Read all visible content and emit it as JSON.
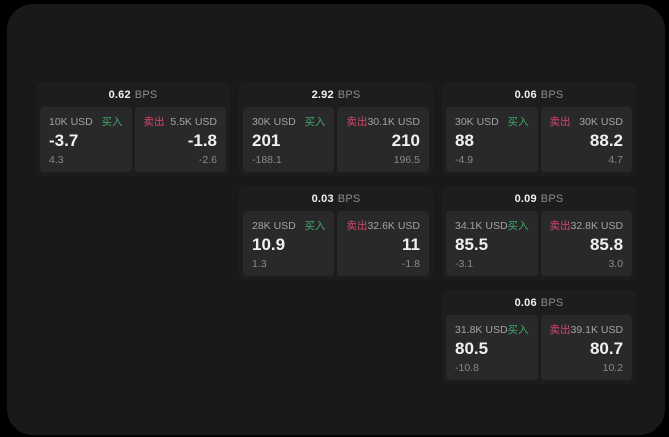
{
  "colors": {
    "panel_bg": "#19191b",
    "card_bg": "#1d1d1f",
    "tile_bg": "#29292b",
    "buy_green": "#3fa968",
    "sell_red": "#d4476a",
    "text_primary": "#f0f0f0",
    "text_muted": "#a3a3a3",
    "text_dim": "#8a8a8a"
  },
  "labels": {
    "bps_unit": "BPS",
    "buy": "买入",
    "sell": "卖出"
  },
  "cards": [
    {
      "row": 1,
      "col": 1,
      "bps": "0.62",
      "buy": {
        "size": "10K USD",
        "main": "-3.7",
        "sub": "4.3"
      },
      "sell": {
        "size": "5.5K USD",
        "main": "-1.8",
        "sub": "-2.6"
      }
    },
    {
      "row": 1,
      "col": 2,
      "bps": "2.92",
      "buy": {
        "size": "30K USD",
        "main": "201",
        "sub": "-188.1"
      },
      "sell": {
        "size": "30.1K USD",
        "main": "210",
        "sub": "196.5"
      }
    },
    {
      "row": 1,
      "col": 3,
      "bps": "0.06",
      "buy": {
        "size": "30K USD",
        "main": "88",
        "sub": "-4.9"
      },
      "sell": {
        "size": "30K USD",
        "main": "88.2",
        "sub": "4.7"
      }
    },
    {
      "row": 2,
      "col": 2,
      "bps": "0.03",
      "buy": {
        "size": "28K USD",
        "main": "10.9",
        "sub": "1.3"
      },
      "sell": {
        "size": "32.6K USD",
        "main": "11",
        "sub": "-1.8"
      }
    },
    {
      "row": 2,
      "col": 3,
      "bps": "0.09",
      "buy": {
        "size": "34.1K USD",
        "main": "85.5",
        "sub": "-3.1"
      },
      "sell": {
        "size": "32.8K USD",
        "main": "85.8",
        "sub": "3.0"
      }
    },
    {
      "row": 3,
      "col": 3,
      "bps": "0.06",
      "buy": {
        "size": "31.8K USD",
        "main": "80.5",
        "sub": "-10.8"
      },
      "sell": {
        "size": "39.1K USD",
        "main": "80.7",
        "sub": "10.2"
      }
    }
  ]
}
